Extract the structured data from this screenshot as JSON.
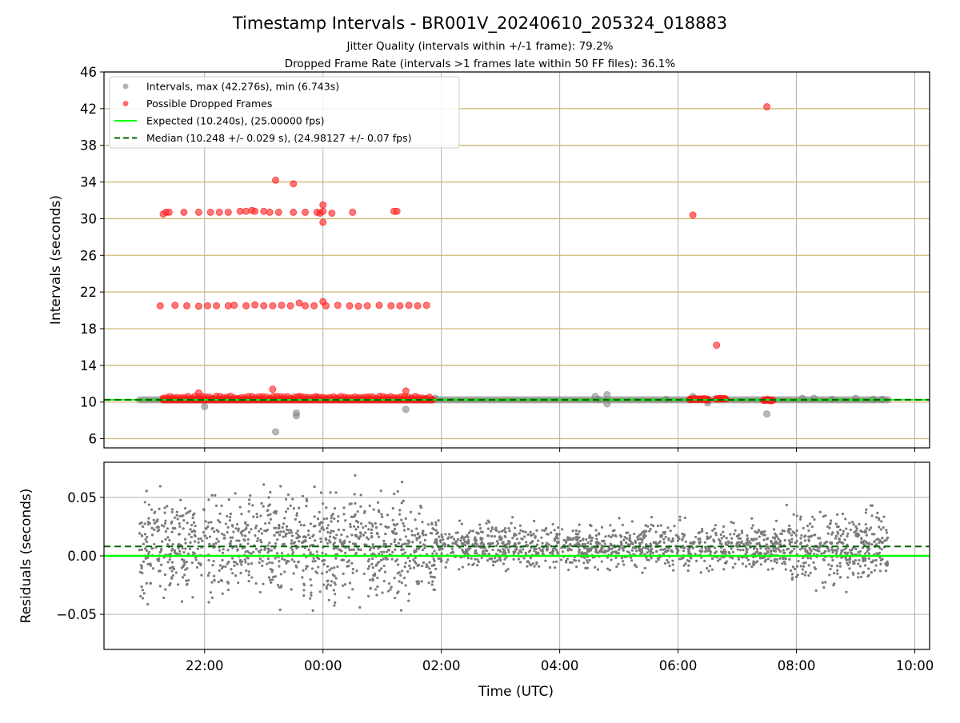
{
  "chart_data": [
    {
      "type": "scatter",
      "title": "Timestamp Intervals - BR001V_20240610_205324_018883",
      "subtitle_lines": [
        "Jitter Quality (intervals within +/-1 frame): 79.2%",
        "Dropped Frame Rate (intervals >1 frames late within 50 FF files): 36.1%"
      ],
      "xlabel": "",
      "ylabel": "Intervals (seconds)",
      "x_unit": "hours since 00:00 UTC",
      "xlim": [
        -3.7,
        10.25
      ],
      "ylim": [
        5,
        46
      ],
      "yticks": [
        6,
        10,
        14,
        18,
        22,
        26,
        30,
        34,
        38,
        42,
        46
      ],
      "grid": {
        "x": "gray vertical at hour ticks",
        "y": "tan horizontal at y ticks"
      },
      "legend": {
        "placement": "upper-left",
        "entries": [
          "Intervals, max (42.276s), min (6.743s)",
          "Possible Dropped Frames",
          "Expected (10.240s), (25.00000 fps)",
          "Median (10.248 +/- 0.029 s), (24.98127 +/- 0.07 fps)"
        ]
      },
      "expected_line": 10.24,
      "median_line": 10.248,
      "base_band": {
        "x_start": -3.1,
        "x_end": 9.55,
        "value": 10.24
      },
      "series": [
        {
          "name": "Intervals, max (42.276s), min (6.743s)",
          "color": "#808080",
          "points": [
            [
              -2.0,
              9.5
            ],
            [
              -0.8,
              6.75
            ],
            [
              -0.45,
              8.5
            ],
            [
              -0.45,
              8.8
            ],
            [
              -0.4,
              10.6
            ],
            [
              -0.1,
              10.5
            ],
            [
              1.4,
              9.2
            ],
            [
              1.9,
              10.4
            ],
            [
              4.6,
              10.6
            ],
            [
              4.8,
              10.8
            ],
            [
              4.8,
              9.8
            ],
            [
              4.65,
              10.3
            ],
            [
              5.8,
              10.3
            ],
            [
              6.25,
              10.6
            ],
            [
              6.5,
              10.2
            ],
            [
              6.5,
              9.9
            ],
            [
              7.5,
              8.7
            ],
            [
              8.1,
              10.4
            ],
            [
              8.3,
              10.4
            ],
            [
              8.6,
              10.3
            ],
            [
              9.0,
              10.4
            ],
            [
              9.3,
              10.3
            ],
            [
              9.45,
              10.3
            ]
          ]
        },
        {
          "name": "Possible Dropped Frames",
          "color": "#ff0000",
          "points": [
            [
              -2.7,
              30.5
            ],
            [
              -2.65,
              30.7
            ],
            [
              -2.6,
              30.7
            ],
            [
              -2.35,
              30.7
            ],
            [
              -2.1,
              30.7
            ],
            [
              -1.9,
              30.7
            ],
            [
              -1.75,
              30.7
            ],
            [
              -1.6,
              30.7
            ],
            [
              -1.4,
              30.8
            ],
            [
              -1.3,
              30.8
            ],
            [
              -1.2,
              30.9
            ],
            [
              -1.15,
              30.8
            ],
            [
              -1.0,
              30.8
            ],
            [
              -0.9,
              30.7
            ],
            [
              -0.75,
              30.7
            ],
            [
              -0.5,
              30.7
            ],
            [
              -0.3,
              30.7
            ],
            [
              -0.1,
              30.7
            ],
            [
              -0.05,
              30.6
            ],
            [
              0.0,
              30.8
            ],
            [
              0.0,
              29.6
            ],
            [
              -0.8,
              34.2
            ],
            [
              -0.5,
              33.8
            ],
            [
              0.0,
              31.5
            ],
            [
              0.15,
              30.6
            ],
            [
              0.5,
              30.7
            ],
            [
              1.2,
              30.8
            ],
            [
              1.25,
              30.8
            ],
            [
              -2.75,
              20.5
            ],
            [
              -2.5,
              20.55
            ],
            [
              -2.3,
              20.5
            ],
            [
              -2.1,
              20.45
            ],
            [
              -1.95,
              20.5
            ],
            [
              -1.8,
              20.5
            ],
            [
              -1.6,
              20.5
            ],
            [
              -1.5,
              20.55
            ],
            [
              -1.3,
              20.5
            ],
            [
              -1.15,
              20.6
            ],
            [
              -1.0,
              20.5
            ],
            [
              -0.85,
              20.5
            ],
            [
              -0.7,
              20.55
            ],
            [
              -0.55,
              20.5
            ],
            [
              -0.4,
              20.8
            ],
            [
              -0.3,
              20.5
            ],
            [
              -0.15,
              20.5
            ],
            [
              0.0,
              20.95
            ],
            [
              0.05,
              20.5
            ],
            [
              0.25,
              20.55
            ],
            [
              0.45,
              20.5
            ],
            [
              0.6,
              20.45
            ],
            [
              0.75,
              20.5
            ],
            [
              0.95,
              20.55
            ],
            [
              1.15,
              20.5
            ],
            [
              1.3,
              20.5
            ],
            [
              1.45,
              20.55
            ],
            [
              1.6,
              20.5
            ],
            [
              1.75,
              20.55
            ],
            [
              -2.1,
              11.0
            ],
            [
              -0.85,
              11.4
            ],
            [
              1.4,
              11.2
            ],
            [
              6.25,
              30.4
            ],
            [
              6.65,
              16.2
            ],
            [
              7.5,
              42.2
            ]
          ],
          "dense_band": [
            {
              "x_start": -2.7,
              "x_end": 1.85,
              "value": 10.25
            },
            {
              "x_start": 6.2,
              "x_end": 6.5,
              "value": 10.3
            },
            {
              "x_start": 6.65,
              "x_end": 6.8,
              "value": 10.35
            },
            {
              "x_start": 7.45,
              "x_end": 7.6,
              "value": 10.2
            }
          ]
        }
      ]
    },
    {
      "type": "scatter",
      "title": "",
      "xlabel": "Time (UTC)",
      "ylabel": "Residuals (seconds)",
      "x_unit": "hours since 00:00 UTC",
      "xlim": [
        -3.7,
        10.25
      ],
      "ylim": [
        -0.08,
        0.08
      ],
      "yticks": [
        0.05,
        0.0,
        -0.05
      ],
      "ytick_labels": [
        "0.05",
        "0.00",
        "−0.05"
      ],
      "xticks": [
        -2,
        0,
        2,
        4,
        6,
        8,
        10
      ],
      "xtick_labels": [
        "22:00",
        "00:00",
        "02:00",
        "04:00",
        "06:00",
        "08:00",
        "10:00"
      ],
      "grid": true,
      "expected_line": 0.0,
      "median_line": 0.008,
      "series": [
        {
          "name": "Residuals",
          "color": "#808080",
          "x_start": -3.1,
          "x_end": 9.55,
          "count": 2600,
          "segments": [
            {
              "x_start": -3.1,
              "x_end": 1.95,
              "spread": 0.075
            },
            {
              "x_start": 1.95,
              "x_end": 7.8,
              "spread": 0.032
            },
            {
              "x_start": 7.8,
              "x_end": 9.55,
              "spread": 0.055
            }
          ]
        }
      ]
    }
  ]
}
